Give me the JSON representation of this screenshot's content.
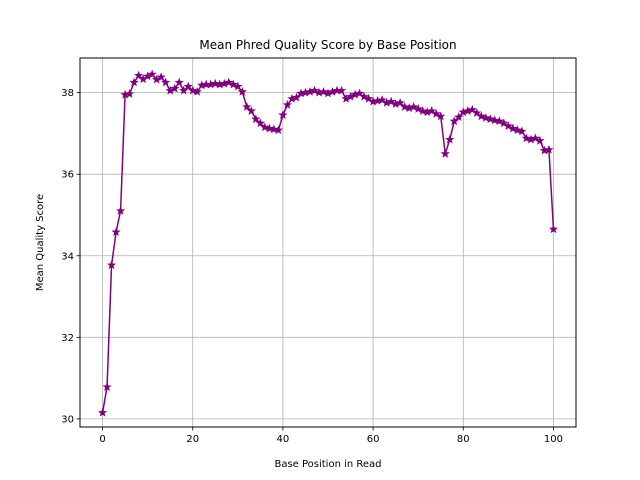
{
  "chart_data": {
    "type": "line",
    "title": "Mean Phred Quality Score by Base Position",
    "xlabel": "Base Position in Read",
    "ylabel": "Mean Quality Score",
    "xlim": [
      -5,
      105
    ],
    "ylim": [
      29.8,
      38.85
    ],
    "xticks": [
      0,
      20,
      40,
      60,
      80,
      100
    ],
    "yticks": [
      30,
      32,
      34,
      36,
      38
    ],
    "grid": true,
    "color": "#800080",
    "marker": "star",
    "series": [
      {
        "x": [
          0,
          1,
          2,
          3,
          4,
          5,
          6,
          7,
          8,
          9,
          10,
          11,
          12,
          13,
          14,
          15,
          16,
          17,
          18,
          19,
          20,
          21,
          22,
          23,
          24,
          25,
          26,
          27,
          28,
          29,
          30,
          31,
          32,
          33,
          34,
          35,
          36,
          37,
          38,
          39,
          40,
          41,
          42,
          43,
          44,
          45,
          46,
          47,
          48,
          49,
          50,
          51,
          52,
          53,
          54,
          55,
          56,
          57,
          58,
          59,
          60,
          61,
          62,
          63,
          64,
          65,
          66,
          67,
          68,
          69,
          70,
          71,
          72,
          73,
          74,
          75,
          76,
          77,
          78,
          79,
          80,
          81,
          82,
          83,
          84,
          85,
          86,
          87,
          88,
          89,
          90,
          91,
          92,
          93,
          94,
          95,
          96,
          97,
          98,
          99,
          100
        ],
        "values": [
          30.15,
          30.78,
          33.77,
          34.58,
          35.1,
          37.95,
          37.97,
          38.25,
          38.42,
          38.33,
          38.4,
          38.45,
          38.32,
          38.38,
          38.25,
          38.05,
          38.1,
          38.25,
          38.05,
          38.15,
          38.05,
          38.02,
          38.18,
          38.2,
          38.2,
          38.22,
          38.2,
          38.22,
          38.25,
          38.2,
          38.15,
          38.02,
          37.65,
          37.55,
          37.35,
          37.25,
          37.15,
          37.12,
          37.1,
          37.08,
          37.45,
          37.7,
          37.85,
          37.88,
          37.98,
          38.0,
          38.02,
          38.05,
          38.0,
          38.02,
          37.98,
          38.02,
          38.05,
          38.05,
          37.85,
          37.9,
          37.95,
          37.98,
          37.9,
          37.85,
          37.78,
          37.8,
          37.82,
          37.75,
          37.78,
          37.72,
          37.75,
          37.65,
          37.62,
          37.65,
          37.6,
          37.55,
          37.52,
          37.55,
          37.48,
          37.42,
          36.5,
          36.85,
          37.3,
          37.4,
          37.52,
          37.55,
          37.58,
          37.5,
          37.42,
          37.38,
          37.35,
          37.32,
          37.3,
          37.25,
          37.18,
          37.12,
          37.08,
          37.05,
          36.88,
          36.85,
          36.88,
          36.82,
          36.58,
          36.6,
          34.65
        ]
      }
    ]
  }
}
